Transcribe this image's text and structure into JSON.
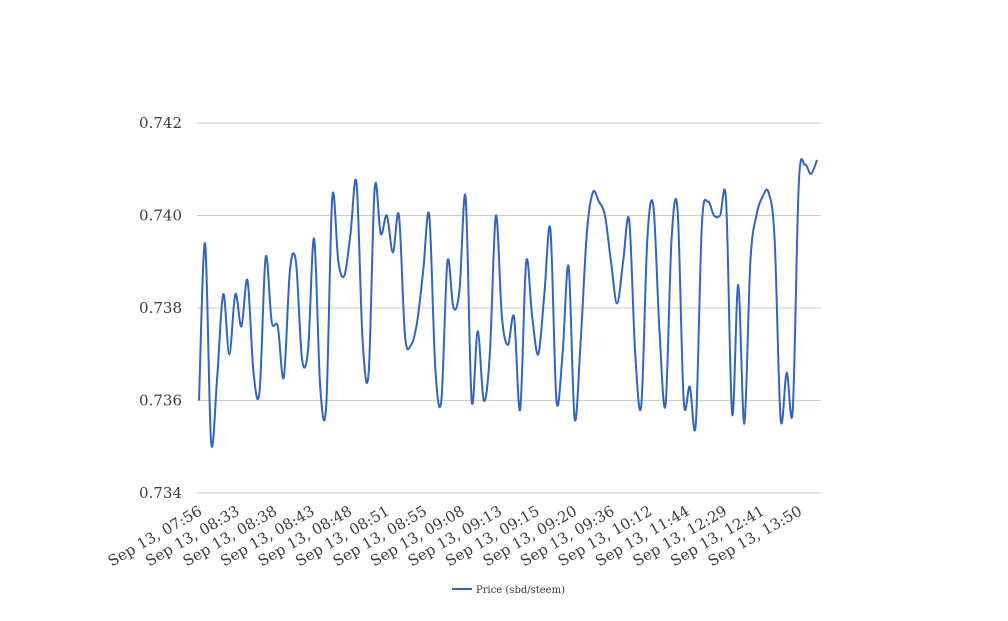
{
  "chart_data": {
    "type": "line",
    "x_ticks": [
      "Sep 13, 07:56",
      "Sep 13, 08:33",
      "Sep 13, 08:38",
      "Sep 13, 08:43",
      "Sep 13, 08:48",
      "Sep 13, 08:51",
      "Sep 13, 08:55",
      "Sep 13, 09:08",
      "Sep 13, 09:13",
      "Sep 13, 09:15",
      "Sep 13, 09:20",
      "Sep 13, 09:36",
      "Sep 13, 10:12",
      "Sep 13, 11:44",
      "Sep 13, 12:29",
      "Sep 13, 12:41",
      "Sep 13, 13:50"
    ],
    "y_ticks": [
      "0.734",
      "0.736",
      "0.738",
      "0.740",
      "0.742"
    ],
    "ylim": [
      0.734,
      0.742
    ],
    "grid": true,
    "legend_position": "bottom",
    "series": [
      {
        "name": "Price (sbd/steem)",
        "color": "#3366bb",
        "values": [
          0.736,
          0.7394,
          0.7351,
          0.7365,
          0.7383,
          0.737,
          0.7383,
          0.7376,
          0.7386,
          0.7366,
          0.7362,
          0.7391,
          0.7377,
          0.7376,
          0.7365,
          0.7388,
          0.739,
          0.7369,
          0.7371,
          0.7395,
          0.7363,
          0.7359,
          0.7404,
          0.739,
          0.7387,
          0.7396,
          0.7407,
          0.7373,
          0.7366,
          0.7406,
          0.7396,
          0.74,
          0.7392,
          0.74,
          0.7374,
          0.7372,
          0.7377,
          0.7388,
          0.74,
          0.7367,
          0.736,
          0.739,
          0.738,
          0.7384,
          0.7404,
          0.736,
          0.7375,
          0.736,
          0.737,
          0.74,
          0.7378,
          0.7372,
          0.7378,
          0.7358,
          0.739,
          0.7378,
          0.737,
          0.7383,
          0.7397,
          0.736,
          0.737,
          0.7389,
          0.7356,
          0.7373,
          0.7396,
          0.7405,
          0.7403,
          0.74,
          0.739,
          0.7381,
          0.739,
          0.7399,
          0.737,
          0.7359,
          0.7395,
          0.7402,
          0.7375,
          0.7359,
          0.7395,
          0.7401,
          0.736,
          0.7363,
          0.7355,
          0.7398,
          0.7403,
          0.74,
          0.74,
          0.7403,
          0.7357,
          0.7385,
          0.7355,
          0.739,
          0.74,
          0.7404,
          0.7405,
          0.7395,
          0.7356,
          0.7366,
          0.7358,
          0.7407,
          0.7411,
          0.7409,
          0.7412
        ]
      }
    ]
  }
}
